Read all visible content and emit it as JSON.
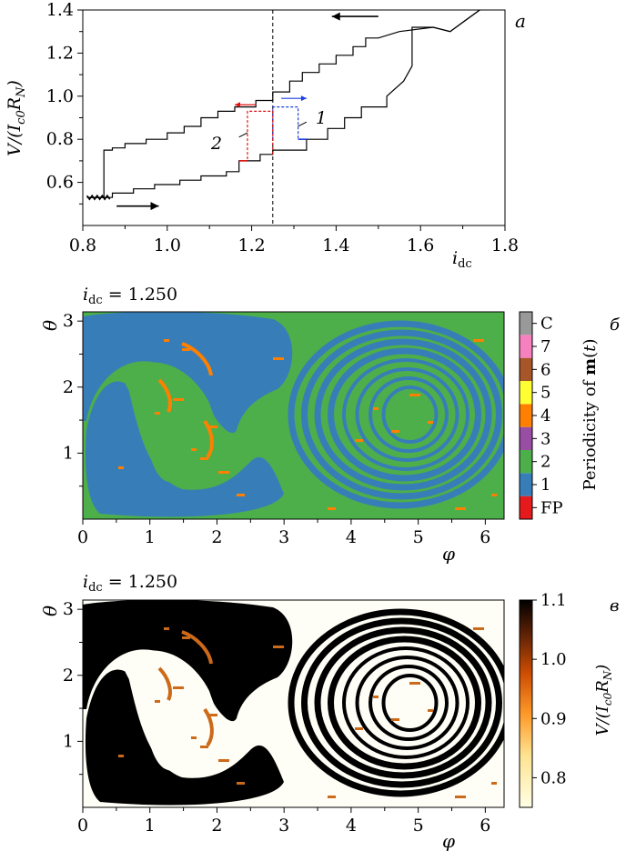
{
  "panel_labels": {
    "a": "a",
    "b": "б",
    "c": "в"
  },
  "panel_a": {
    "ylabel": "V/(I_c0 R_N)",
    "xlabel": "i_dc",
    "curve_labels": {
      "c1": "1",
      "c2": "2"
    }
  },
  "panel_b": {
    "title": "i_dc = 1.250",
    "xlabel": "φ",
    "ylabel": "θ",
    "colorbar_label": "Periodicity of m(t)"
  },
  "panel_c": {
    "title": "i_dc = 1.250",
    "xlabel": "φ",
    "ylabel": "θ",
    "colorbar_label": "V/(I_c0 R_N)"
  },
  "colors": {
    "FP": "#e41a1c",
    "1": "#377eb8",
    "2": "#4daf4a",
    "3": "#984ea3",
    "4": "#ff7f00",
    "5": "#ffff33",
    "6": "#a65628",
    "7": "#f781bf",
    "C": "#999999"
  },
  "chart_data": [
    {
      "type": "line",
      "panel": "a",
      "xlim": [
        0.8,
        1.8
      ],
      "ylim": [
        0.4,
        1.4
      ],
      "xticks": [
        "0.8",
        "1.0",
        "1.2",
        "1.4",
        "1.6",
        "1.8"
      ],
      "yticks": [
        "0.6",
        "0.8",
        "1.0",
        "1.2",
        "1.4"
      ],
      "marker_line_x": 1.25,
      "series": [
        {
          "role": "up-sweep",
          "x": [
            0.81,
            0.87,
            0.87,
            0.92,
            0.92,
            0.97,
            0.97,
            1.03,
            1.03,
            1.08,
            1.08,
            1.14,
            1.14,
            1.17,
            1.17,
            1.22,
            1.22,
            1.25,
            1.25,
            1.33,
            1.33,
            1.38,
            1.38,
            1.42,
            1.42,
            1.46,
            1.46,
            1.52,
            1.52,
            1.56,
            1.58,
            1.58,
            1.63,
            1.67,
            1.74
          ],
          "y": [
            0.53,
            0.53,
            0.55,
            0.55,
            0.57,
            0.57,
            0.59,
            0.59,
            0.61,
            0.61,
            0.63,
            0.63,
            0.65,
            0.65,
            0.7,
            0.7,
            0.73,
            0.73,
            0.75,
            0.75,
            0.8,
            0.8,
            0.85,
            0.85,
            0.9,
            0.9,
            0.95,
            0.95,
            1.0,
            1.07,
            1.14,
            1.32,
            1.32,
            1.3,
            1.4
          ]
        },
        {
          "role": "down-sweep",
          "x": [
            1.74,
            1.67,
            1.63,
            1.55,
            1.5,
            1.47,
            1.47,
            1.44,
            1.44,
            1.4,
            1.4,
            1.36,
            1.36,
            1.32,
            1.32,
            1.29,
            1.29,
            1.25,
            1.25,
            1.21,
            1.21,
            1.16,
            1.16,
            1.12,
            1.12,
            1.08,
            1.08,
            1.04,
            1.04,
            1.0,
            1.0,
            0.95,
            0.95,
            0.9,
            0.9,
            0.87,
            0.87,
            0.85,
            0.85,
            0.81
          ],
          "y": [
            1.4,
            1.3,
            1.32,
            1.3,
            1.27,
            1.27,
            1.23,
            1.23,
            1.19,
            1.19,
            1.15,
            1.15,
            1.11,
            1.11,
            1.07,
            1.07,
            1.02,
            1.02,
            0.98,
            0.98,
            0.95,
            0.95,
            0.93,
            0.93,
            0.9,
            0.9,
            0.86,
            0.86,
            0.83,
            0.83,
            0.8,
            0.8,
            0.78,
            0.78,
            0.76,
            0.76,
            0.75,
            0.75,
            0.53,
            0.53
          ]
        }
      ],
      "annotations": {
        "curve1_blue": {
          "x": [
            1.25,
            1.25,
            1.31,
            1.31,
            1.33
          ],
          "y": [
            0.8,
            0.95,
            0.95,
            0.8,
            0.8
          ],
          "style": "dashed"
        },
        "curve2_red": {
          "x": [
            1.25,
            1.25,
            1.19,
            1.19,
            1.17
          ],
          "y": [
            0.73,
            0.93,
            0.93,
            0.7,
            0.7
          ],
          "style": "dashed"
        },
        "arrows": [
          {
            "color": "black",
            "from": [
              1.5,
              1.37
            ],
            "to": [
              1.39,
              1.37
            ]
          },
          {
            "color": "black",
            "from": [
              0.88,
              0.49
            ],
            "to": [
              0.98,
              0.49
            ]
          },
          {
            "color": "red",
            "from": [
              1.21,
              0.96
            ],
            "to": [
              1.16,
              0.96
            ]
          },
          {
            "color": "blue",
            "from": [
              1.27,
              0.99
            ],
            "to": [
              1.33,
              0.99
            ]
          }
        ],
        "label_positions": {
          "1": [
            1.34,
            0.87
          ],
          "2": [
            1.14,
            0.78
          ]
        }
      }
    },
    {
      "type": "heatmap",
      "panel": "b",
      "xlim": [
        0,
        6.28
      ],
      "ylim": [
        0,
        3.14
      ],
      "xticks": [
        "0",
        "1",
        "2",
        "3",
        "4",
        "5",
        "6"
      ],
      "yticks": [
        "1",
        "2",
        "3"
      ],
      "categories": [
        "FP",
        "1",
        "2",
        "3",
        "4",
        "5",
        "6",
        "7",
        "C"
      ],
      "dominant": [
        "2",
        "1"
      ]
    },
    {
      "type": "heatmap",
      "panel": "c",
      "xlim": [
        0,
        6.28
      ],
      "ylim": [
        0,
        3.14
      ],
      "xticks": [
        "0",
        "1",
        "2",
        "3",
        "4",
        "5",
        "6"
      ],
      "yticks": [
        "1",
        "2",
        "3"
      ],
      "colorbar_ticks": [
        "0.8",
        "0.9",
        "1.0",
        "1.1"
      ],
      "colorbar_range": [
        0.75,
        1.1
      ]
    }
  ]
}
